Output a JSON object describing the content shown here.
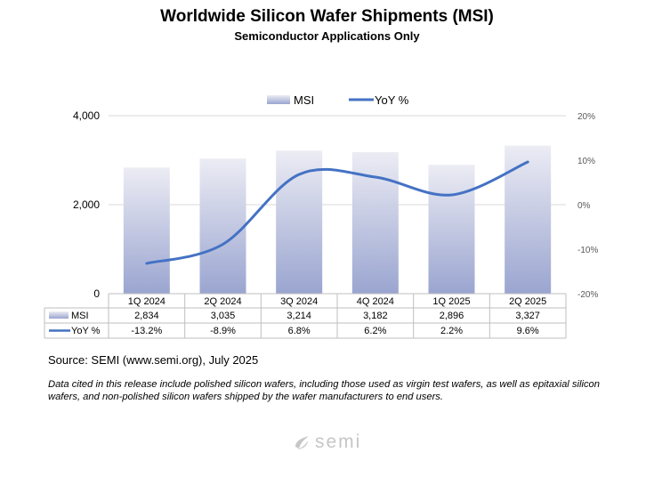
{
  "title": "Worldwide Silicon Wafer Shipments (MSI)",
  "subtitle": "Semiconductor Applications Only",
  "source": "Source: SEMI (www.semi.org), July 2025",
  "note": "Data cited in this release include polished silicon wafers, including those used as virgin test wafers, as well as epitaxial silicon wafers, and non-polished silicon wafers shipped by the wafer manufacturers to end users.",
  "logo_text": "semi",
  "colors": {
    "bar_top": "#ececf4",
    "bar_bottom": "#9aa5d0",
    "line": "#4472c4",
    "grid": "#d9d9d9",
    "axis_text": "#595959",
    "logo": "#c6c6c6"
  },
  "chart_data": {
    "type": "bar+line",
    "categories": [
      "1Q 2024",
      "2Q 2024",
      "3Q 2024",
      "4Q 2024",
      "1Q 2025",
      "2Q 2025"
    ],
    "series": [
      {
        "name": "MSI",
        "type": "bar",
        "axis": "left",
        "values": [
          2834,
          3035,
          3214,
          3182,
          2896,
          3327
        ],
        "labels": [
          "2,834",
          "3,035",
          "3,214",
          "3,182",
          "2,896",
          "3,327"
        ]
      },
      {
        "name": "YoY %",
        "type": "line",
        "axis": "right",
        "values": [
          -13.2,
          -8.9,
          6.8,
          6.2,
          2.2,
          9.6
        ],
        "labels": [
          "-13.2%",
          "-8.9%",
          "6.8%",
          "6.2%",
          "2.2%",
          "9.6%"
        ]
      }
    ],
    "y_left": {
      "range": [
        0,
        4000
      ],
      "ticks": [
        0,
        2000,
        4000
      ],
      "tick_labels": [
        "0",
        "2,000",
        "4,000"
      ]
    },
    "y_right": {
      "range": [
        -20,
        20
      ],
      "ticks": [
        -20,
        -10,
        0,
        10,
        20
      ],
      "tick_labels": [
        "-20%",
        "-10%",
        "0%",
        "10%",
        "20%"
      ]
    },
    "legend": [
      "MSI",
      "YoY %"
    ],
    "legend_position": "top-center",
    "data_table": true,
    "title": "Worldwide Silicon Wafer Shipments (MSI)",
    "subtitle": "Semiconductor Applications Only"
  }
}
